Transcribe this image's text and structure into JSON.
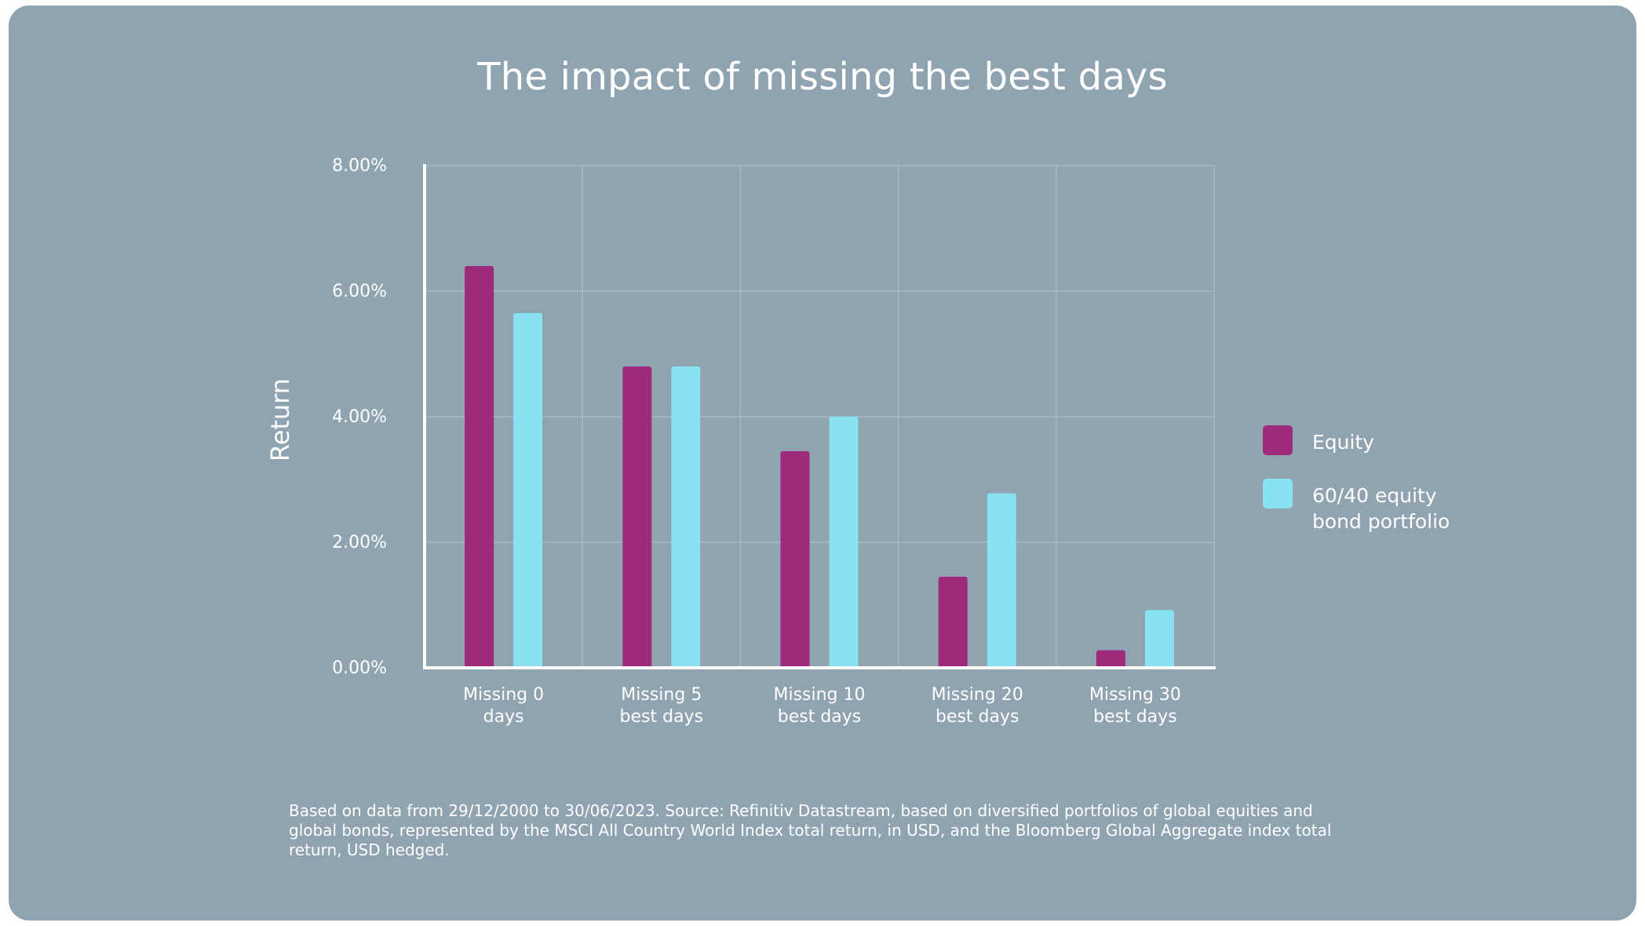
{
  "chart_data": {
    "type": "bar",
    "title": "The impact of missing the best days",
    "ylabel": "Return",
    "xlabel": "",
    "ylim": [
      0,
      8
    ],
    "yticks": [
      0,
      2,
      4,
      6,
      8
    ],
    "ytick_labels": [
      "0.00%",
      "2.00%",
      "4.00%",
      "6.00%",
      "8.00%"
    ],
    "categories": [
      [
        "Missing 0",
        "days"
      ],
      [
        "Missing 5",
        "best days"
      ],
      [
        "Missing 10",
        "best days"
      ],
      [
        "Missing 20",
        "best days"
      ],
      [
        "Missing 30",
        "best days"
      ]
    ],
    "series": [
      {
        "name": "Equity",
        "legend_lines": [
          "Equity"
        ],
        "color": "#9e2a7c",
        "values": [
          6.4,
          4.8,
          3.45,
          1.45,
          0.28
        ]
      },
      {
        "name": "60/40 equity bond portfolio",
        "legend_lines": [
          "60/40 equity",
          "bond portfolio"
        ],
        "color": "#89e2f1",
        "values": [
          5.65,
          4.8,
          4.0,
          2.78,
          0.92
        ]
      }
    ],
    "grid": true,
    "legend_position": "right"
  },
  "footnote": "Based on data from 29/12/2000 to 30/06/2023. Source: Refinitiv Datastream, based on diversified portfolios of global equities and global bonds, represented by the MSCI All Country World Index total return, in USD, and the Bloomberg Global Aggregate index total return, USD hedged.",
  "colors": {
    "background": "#8fa3b0",
    "text": "#ffffff",
    "gridline": "#a9bac4"
  }
}
